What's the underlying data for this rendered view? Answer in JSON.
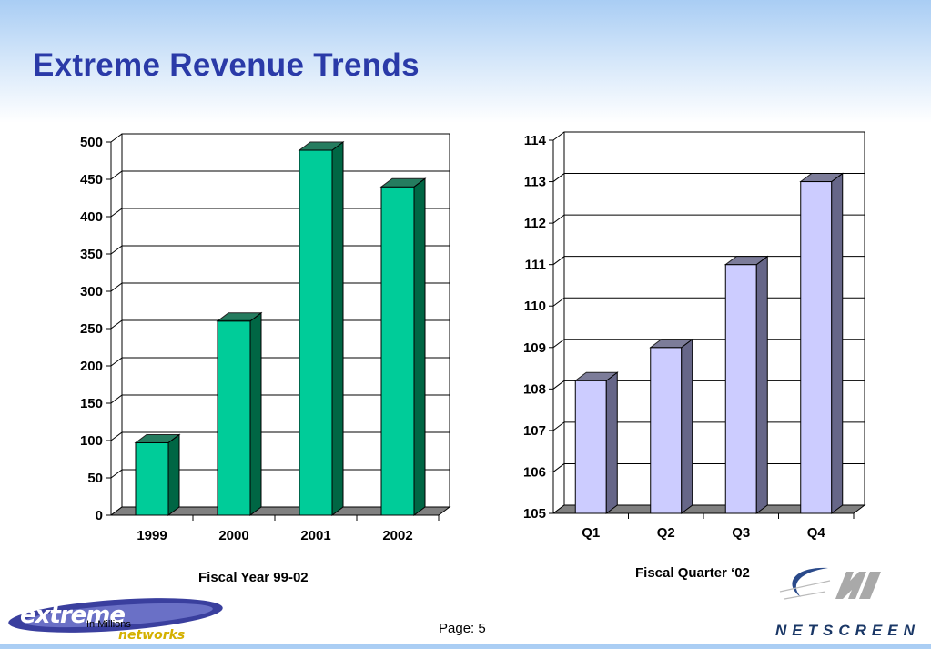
{
  "slide": {
    "title": "Extreme Revenue Trends",
    "page_label": "Page: 5",
    "units_note": "In Millions",
    "logo_left": "extreme networks",
    "logo_right": "NetScreen"
  },
  "colors": {
    "title": "#2a3aa8",
    "bar_left_front": "#00cc99",
    "bar_left_side": "#006644",
    "bar_right_front": "#ccccff",
    "bar_right_side": "#666688",
    "floor": "#808080"
  },
  "chart_data": [
    {
      "type": "bar",
      "title": "",
      "xlabel": "Fiscal Year 99-02",
      "ylabel": "",
      "categories": [
        "1999",
        "2000",
        "2001",
        "2002"
      ],
      "values": [
        97,
        260,
        489,
        440
      ],
      "ylim": [
        0,
        500
      ],
      "yticks": [
        0,
        50,
        100,
        150,
        200,
        250,
        300,
        350,
        400,
        450,
        500
      ],
      "grid": true,
      "legend": "none"
    },
    {
      "type": "bar",
      "title": "",
      "xlabel": "Fiscal Quarter ‘02",
      "ylabel": "",
      "categories": [
        "Q1",
        "Q2",
        "Q3",
        "Q4"
      ],
      "values": [
        108.2,
        109.0,
        111.0,
        113.0
      ],
      "ylim": [
        105,
        114
      ],
      "yticks": [
        105,
        106,
        107,
        108,
        109,
        110,
        111,
        112,
        113,
        114
      ],
      "grid": true,
      "legend": "none"
    }
  ]
}
